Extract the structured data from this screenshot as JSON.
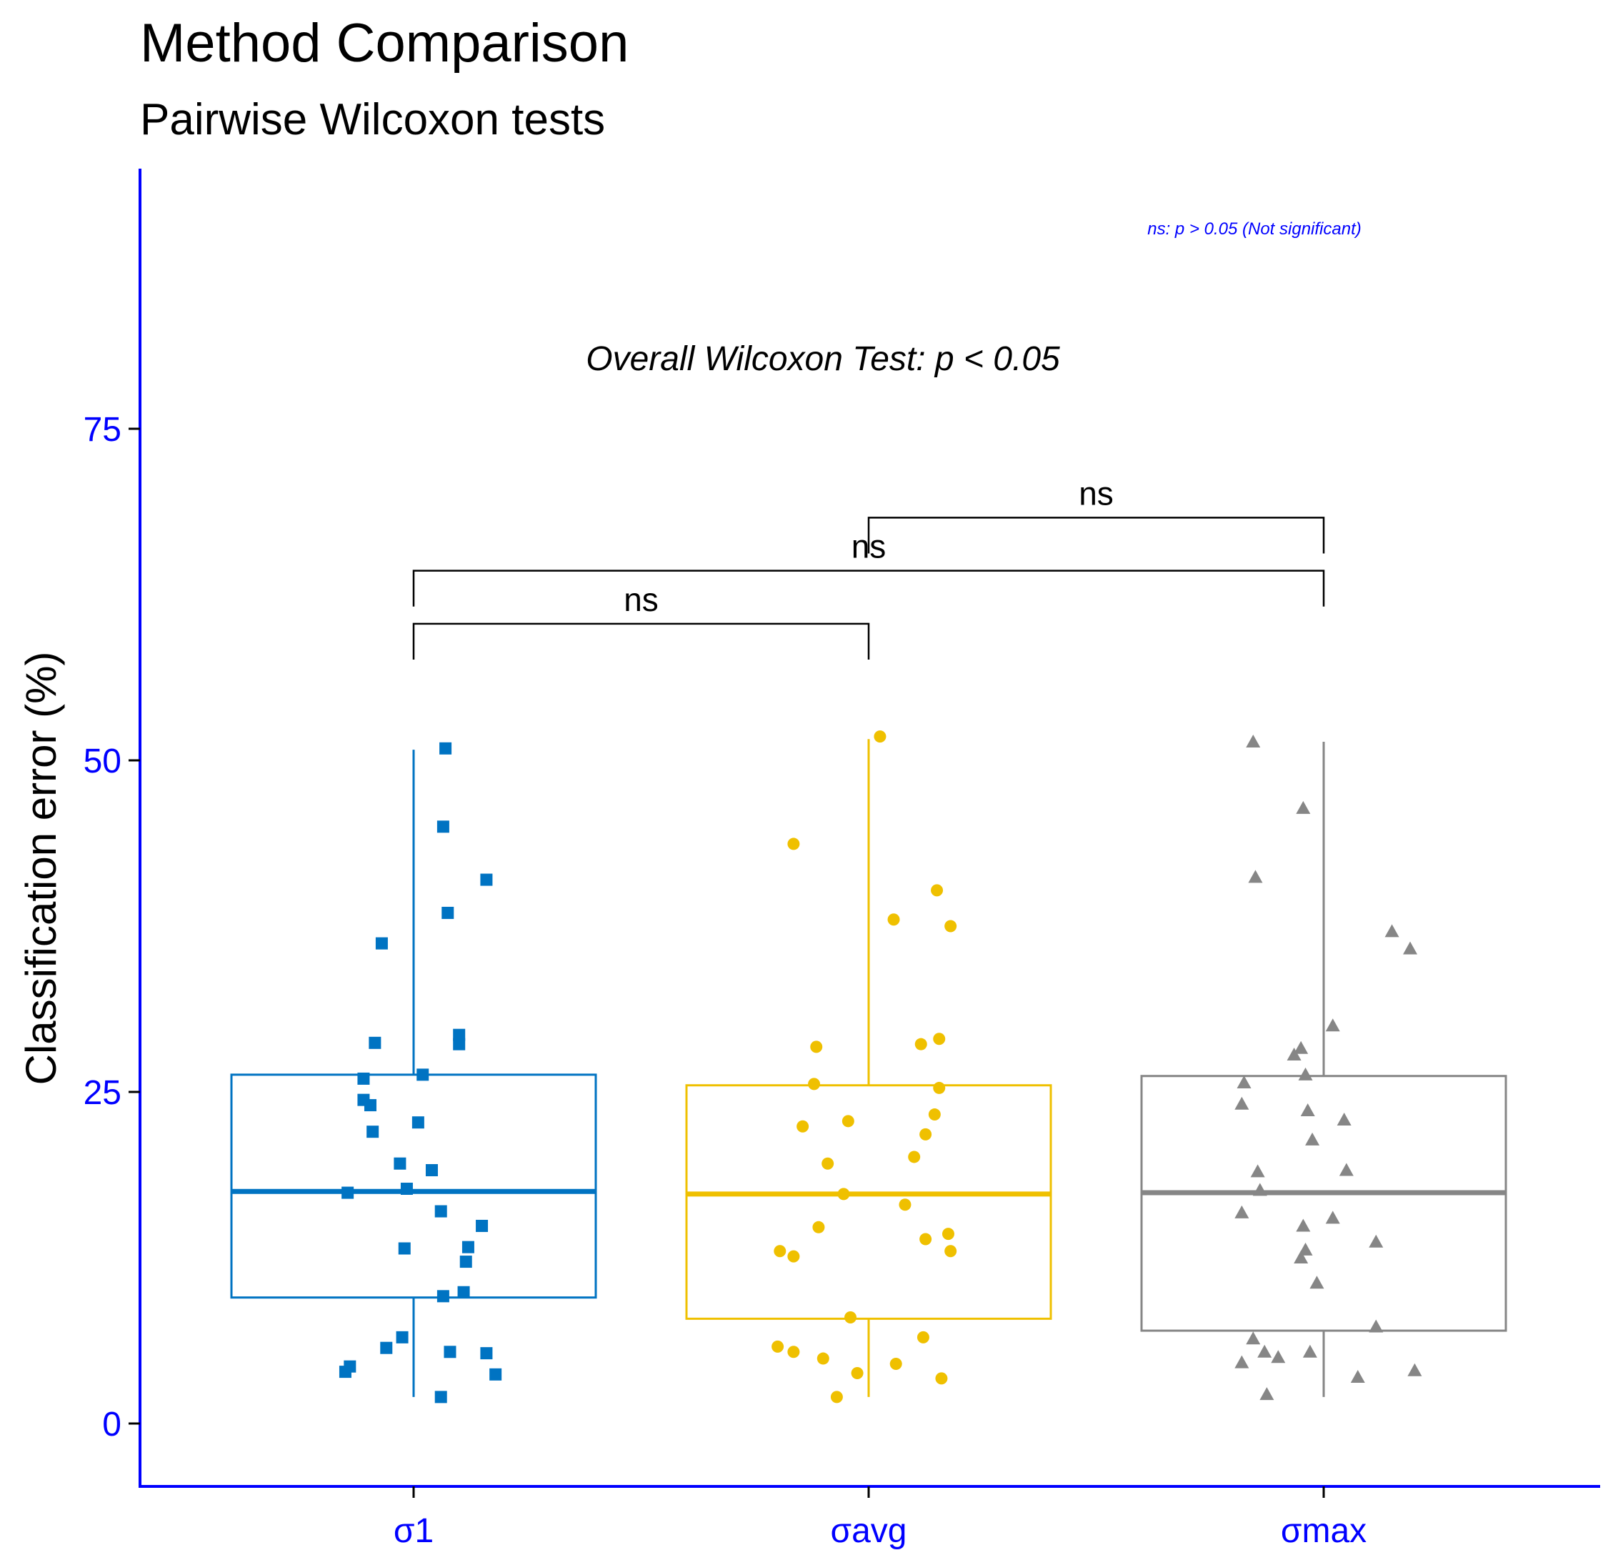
{
  "chart_data": {
    "type": "box",
    "title": "Method Comparison",
    "subtitle": "Pairwise Wilcoxon tests",
    "ylabel": "Classification error (%)",
    "xlabel": "",
    "ylim": [
      -4.5,
      94
    ],
    "yticks": [
      0,
      25,
      50,
      75
    ],
    "ytick_labels": [
      "0",
      "25",
      "50",
      "75"
    ],
    "categories": [
      "σ1",
      "σavg",
      "σmax"
    ],
    "axis_color": "#0000FF",
    "note": "ns: p > 0.05 (Not significant)",
    "overall_label": "Overall Wilcoxon Test: p < 0.05",
    "groups": [
      {
        "name": "σ1",
        "color": "#0073C2",
        "shape": "square",
        "box": {
          "min": 2.0,
          "q1": 9.5,
          "median": 17.5,
          "q3": 26.3,
          "max": 50.8
        },
        "points": [
          {
            "dx": 0.07,
            "y": 50.9
          },
          {
            "dx": 0.065,
            "y": 45.0
          },
          {
            "dx": 0.16,
            "y": 41.0
          },
          {
            "dx": 0.075,
            "y": 38.5
          },
          {
            "dx": -0.07,
            "y": 36.2
          },
          {
            "dx": -0.085,
            "y": 28.7
          },
          {
            "dx": 0.1,
            "y": 29.3
          },
          {
            "dx": 0.1,
            "y": 28.6
          },
          {
            "dx": 0.02,
            "y": 26.3
          },
          {
            "dx": -0.11,
            "y": 26.0
          },
          {
            "dx": -0.11,
            "y": 24.4
          },
          {
            "dx": -0.095,
            "y": 24.0
          },
          {
            "dx": 0.01,
            "y": 22.7
          },
          {
            "dx": -0.09,
            "y": 22.0
          },
          {
            "dx": -0.03,
            "y": 19.6
          },
          {
            "dx": -0.015,
            "y": 17.7
          },
          {
            "dx": -0.145,
            "y": 17.4
          },
          {
            "dx": 0.04,
            "y": 19.1
          },
          {
            "dx": 0.06,
            "y": 16.0
          },
          {
            "dx": 0.15,
            "y": 14.9
          },
          {
            "dx": 0.12,
            "y": 13.3
          },
          {
            "dx": -0.02,
            "y": 13.2
          },
          {
            "dx": 0.115,
            "y": 12.2
          },
          {
            "dx": 0.11,
            "y": 9.9
          },
          {
            "dx": 0.065,
            "y": 9.6
          },
          {
            "dx": -0.025,
            "y": 6.5
          },
          {
            "dx": -0.06,
            "y": 5.7
          },
          {
            "dx": 0.08,
            "y": 5.4
          },
          {
            "dx": 0.16,
            "y": 5.3
          },
          {
            "dx": -0.14,
            "y": 4.3
          },
          {
            "dx": -0.15,
            "y": 3.9
          },
          {
            "dx": 0.18,
            "y": 3.7
          },
          {
            "dx": 0.06,
            "y": 2.0
          }
        ]
      },
      {
        "name": "σavg",
        "color": "#EFC000",
        "shape": "circle",
        "box": {
          "min": 2.0,
          "q1": 7.9,
          "median": 17.3,
          "q3": 25.5,
          "max": 51.6
        },
        "points": [
          {
            "dx": 0.025,
            "y": 51.8
          },
          {
            "dx": -0.165,
            "y": 43.7
          },
          {
            "dx": 0.15,
            "y": 40.2
          },
          {
            "dx": 0.055,
            "y": 38.0
          },
          {
            "dx": 0.18,
            "y": 37.5
          },
          {
            "dx": 0.155,
            "y": 29.0
          },
          {
            "dx": 0.115,
            "y": 28.6
          },
          {
            "dx": -0.115,
            "y": 28.4
          },
          {
            "dx": -0.12,
            "y": 25.6
          },
          {
            "dx": 0.155,
            "y": 25.3
          },
          {
            "dx": 0.145,
            "y": 23.3
          },
          {
            "dx": -0.045,
            "y": 22.8
          },
          {
            "dx": -0.145,
            "y": 22.4
          },
          {
            "dx": 0.125,
            "y": 21.8
          },
          {
            "dx": 0.1,
            "y": 20.1
          },
          {
            "dx": -0.09,
            "y": 19.6
          },
          {
            "dx": -0.055,
            "y": 17.3
          },
          {
            "dx": 0.08,
            "y": 16.5
          },
          {
            "dx": -0.11,
            "y": 14.8
          },
          {
            "dx": 0.125,
            "y": 13.9
          },
          {
            "dx": 0.175,
            "y": 14.3
          },
          {
            "dx": -0.195,
            "y": 13.0
          },
          {
            "dx": -0.165,
            "y": 12.6
          },
          {
            "dx": 0.18,
            "y": 13.0
          },
          {
            "dx": -0.04,
            "y": 8.0
          },
          {
            "dx": -0.2,
            "y": 5.8
          },
          {
            "dx": -0.165,
            "y": 5.4
          },
          {
            "dx": 0.12,
            "y": 6.5
          },
          {
            "dx": -0.1,
            "y": 4.9
          },
          {
            "dx": -0.025,
            "y": 3.8
          },
          {
            "dx": 0.06,
            "y": 4.5
          },
          {
            "dx": 0.16,
            "y": 3.4
          },
          {
            "dx": -0.07,
            "y": 2.0
          }
        ]
      },
      {
        "name": "σmax",
        "color": "#868686",
        "shape": "triangle",
        "box": {
          "min": 2.0,
          "q1": 7.0,
          "median": 17.4,
          "q3": 26.2,
          "max": 51.4
        },
        "points": [
          {
            "dx": -0.155,
            "y": 51.4
          },
          {
            "dx": -0.045,
            "y": 46.4
          },
          {
            "dx": -0.15,
            "y": 41.2
          },
          {
            "dx": 0.15,
            "y": 37.1
          },
          {
            "dx": 0.19,
            "y": 35.8
          },
          {
            "dx": 0.02,
            "y": 30.0
          },
          {
            "dx": -0.05,
            "y": 28.3
          },
          {
            "dx": -0.065,
            "y": 27.8
          },
          {
            "dx": -0.04,
            "y": 26.3
          },
          {
            "dx": -0.175,
            "y": 25.7
          },
          {
            "dx": -0.18,
            "y": 24.1
          },
          {
            "dx": -0.035,
            "y": 23.6
          },
          {
            "dx": 0.045,
            "y": 22.9
          },
          {
            "dx": -0.025,
            "y": 21.4
          },
          {
            "dx": -0.145,
            "y": 19.0
          },
          {
            "dx": 0.05,
            "y": 19.1
          },
          {
            "dx": -0.14,
            "y": 17.6
          },
          {
            "dx": -0.18,
            "y": 15.9
          },
          {
            "dx": 0.02,
            "y": 15.5
          },
          {
            "dx": -0.045,
            "y": 14.9
          },
          {
            "dx": 0.115,
            "y": 13.7
          },
          {
            "dx": -0.04,
            "y": 13.1
          },
          {
            "dx": -0.05,
            "y": 12.5
          },
          {
            "dx": -0.015,
            "y": 10.6
          },
          {
            "dx": 0.115,
            "y": 7.3
          },
          {
            "dx": -0.155,
            "y": 6.4
          },
          {
            "dx": -0.13,
            "y": 5.4
          },
          {
            "dx": -0.03,
            "y": 5.4
          },
          {
            "dx": -0.1,
            "y": 5.0
          },
          {
            "dx": -0.18,
            "y": 4.6
          },
          {
            "dx": 0.2,
            "y": 4.0
          },
          {
            "dx": 0.075,
            "y": 3.5
          },
          {
            "dx": -0.125,
            "y": 2.2
          }
        ]
      }
    ],
    "comparisons": [
      {
        "from": 0,
        "to": 1,
        "y": 60.3,
        "y_tip": 57.6,
        "label": "ns"
      },
      {
        "from": 0,
        "to": 2,
        "y": 64.3,
        "y_tip": 61.6,
        "label": "ns"
      },
      {
        "from": 1,
        "to": 2,
        "y": 68.3,
        "y_tip": 65.6,
        "label": "ns"
      }
    ]
  }
}
